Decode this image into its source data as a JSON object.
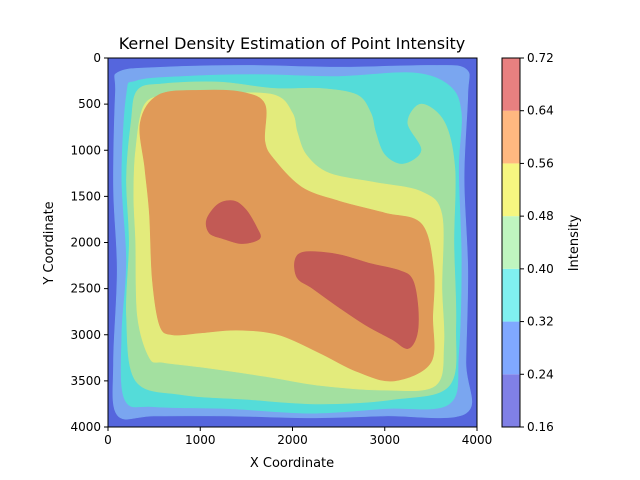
{
  "chart_data": {
    "type": "heatmap",
    "title": "Kernel Density Estimation of Point Intensity",
    "xlabel": "X Coordinate",
    "ylabel": "Y Coordinate",
    "xlim": [
      0,
      4000
    ],
    "ylim": [
      4000,
      0
    ],
    "x_ticks": [
      0,
      1000,
      2000,
      3000,
      4000
    ],
    "y_ticks": [
      0,
      500,
      1000,
      1500,
      2000,
      2500,
      3000,
      3500,
      4000
    ],
    "colorbar": {
      "label": "Intensity",
      "levels": [
        0.16,
        0.24,
        0.32,
        0.4,
        0.48,
        0.56,
        0.64,
        0.72
      ],
      "tick_labels": [
        "0.16",
        "0.24",
        "0.32",
        "0.40",
        "0.48",
        "0.56",
        "0.64",
        "0.72"
      ],
      "colors": [
        "#8080e6",
        "#80a8ff",
        "#80f0f0",
        "#bff5bf",
        "#f6f680",
        "#ffb880",
        "#e88080"
      ]
    },
    "contours": [
      {
        "level": 0.16,
        "color": "#5566dd",
        "points": [
          [
            0,
            0
          ],
          [
            4000,
            0
          ],
          [
            4000,
            4000
          ],
          [
            0,
            4000
          ]
        ]
      },
      {
        "level": 0.24,
        "color": "#7aa6f0",
        "points": [
          [
            80,
            380
          ],
          [
            120,
            150
          ],
          [
            600,
            100
          ],
          [
            1500,
            80
          ],
          [
            2500,
            100
          ],
          [
            3500,
            80
          ],
          [
            3880,
            120
          ],
          [
            3900,
            400
          ],
          [
            3860,
            1300
          ],
          [
            3900,
            2300
          ],
          [
            3880,
            3300
          ],
          [
            3880,
            3850
          ],
          [
            3000,
            3880
          ],
          [
            2200,
            3900
          ],
          [
            1300,
            3880
          ],
          [
            500,
            3880
          ],
          [
            100,
            3870
          ],
          [
            60,
            3300
          ],
          [
            100,
            2300
          ],
          [
            60,
            1400
          ]
        ]
      },
      {
        "level": 0.32,
        "color": "#54dcd9",
        "points": [
          [
            200,
            400
          ],
          [
            300,
            250
          ],
          [
            800,
            200
          ],
          [
            1600,
            180
          ],
          [
            2500,
            200
          ],
          [
            3300,
            160
          ],
          [
            3700,
            300
          ],
          [
            3830,
            600
          ],
          [
            3800,
            1200
          ],
          [
            3830,
            2200
          ],
          [
            3800,
            3200
          ],
          [
            3700,
            3750
          ],
          [
            3000,
            3800
          ],
          [
            2200,
            3850
          ],
          [
            1300,
            3800
          ],
          [
            500,
            3780
          ],
          [
            180,
            3700
          ],
          [
            150,
            3000
          ],
          [
            200,
            2200
          ],
          [
            150,
            1300
          ]
        ]
      },
      {
        "level": 0.4,
        "color": "#a3e0a0",
        "points": [
          [
            250,
            700
          ],
          [
            320,
            350
          ],
          [
            600,
            280
          ],
          [
            1200,
            260
          ],
          [
            1800,
            330
          ],
          [
            2300,
            330
          ],
          [
            2700,
            400
          ],
          [
            2850,
            600
          ],
          [
            2900,
            800
          ],
          [
            3000,
            1050
          ],
          [
            3200,
            1150
          ],
          [
            3400,
            1000
          ],
          [
            3250,
            700
          ],
          [
            3400,
            500
          ],
          [
            3650,
            700
          ],
          [
            3760,
            1200
          ],
          [
            3750,
            2000
          ],
          [
            3770,
            2900
          ],
          [
            3700,
            3550
          ],
          [
            3100,
            3700
          ],
          [
            2300,
            3750
          ],
          [
            1500,
            3700
          ],
          [
            800,
            3650
          ],
          [
            300,
            3500
          ],
          [
            200,
            2800
          ],
          [
            230,
            2000
          ],
          [
            200,
            1300
          ]
        ]
      },
      {
        "level": 0.48,
        "color": "#e3eb7c",
        "points": [
          [
            300,
            1000
          ],
          [
            400,
            500
          ],
          [
            700,
            400
          ],
          [
            1200,
            380
          ],
          [
            1800,
            400
          ],
          [
            2000,
            600
          ],
          [
            2050,
            800
          ],
          [
            2150,
            1050
          ],
          [
            2400,
            1250
          ],
          [
            2900,
            1350
          ],
          [
            3400,
            1450
          ],
          [
            3620,
            1700
          ],
          [
            3620,
            2500
          ],
          [
            3640,
            3100
          ],
          [
            3550,
            3550
          ],
          [
            3000,
            3600
          ],
          [
            2300,
            3550
          ],
          [
            1700,
            3450
          ],
          [
            1000,
            3350
          ],
          [
            600,
            3300
          ],
          [
            450,
            3250
          ],
          [
            320,
            2800
          ],
          [
            300,
            2000
          ],
          [
            280,
            1500
          ]
        ]
      },
      {
        "level": 0.56,
        "color": "#e09a58",
        "points": [
          [
            350,
            700
          ],
          [
            550,
            400
          ],
          [
            1000,
            350
          ],
          [
            1450,
            370
          ],
          [
            1700,
            500
          ],
          [
            1700,
            900
          ],
          [
            1800,
            1100
          ],
          [
            2100,
            1400
          ],
          [
            2500,
            1550
          ],
          [
            3000,
            1680
          ],
          [
            3400,
            1800
          ],
          [
            3530,
            2300
          ],
          [
            3520,
            2800
          ],
          [
            3500,
            3300
          ],
          [
            3100,
            3500
          ],
          [
            2700,
            3400
          ],
          [
            2300,
            3200
          ],
          [
            1850,
            3000
          ],
          [
            1400,
            2950
          ],
          [
            1000,
            2980
          ],
          [
            700,
            3000
          ],
          [
            560,
            2900
          ],
          [
            480,
            2400
          ],
          [
            450,
            1700
          ],
          [
            400,
            1200
          ]
        ]
      },
      {
        "level": 0.64,
        "color": "#c25a55",
        "points": [
          [
            1070,
            1750
          ],
          [
            1200,
            1580
          ],
          [
            1370,
            1550
          ],
          [
            1500,
            1650
          ],
          [
            1620,
            1850
          ],
          [
            1650,
            1950
          ],
          [
            1550,
            2000
          ],
          [
            1420,
            2010
          ],
          [
            1250,
            1960
          ],
          [
            1100,
            1900
          ]
        ]
      },
      {
        "level": 0.64,
        "color": "#c25a55",
        "points": [
          [
            2030,
            2180
          ],
          [
            2150,
            2100
          ],
          [
            2500,
            2130
          ],
          [
            2850,
            2230
          ],
          [
            3150,
            2300
          ],
          [
            3300,
            2400
          ],
          [
            3360,
            2700
          ],
          [
            3350,
            3000
          ],
          [
            3250,
            3150
          ],
          [
            3080,
            3050
          ],
          [
            2800,
            2900
          ],
          [
            2500,
            2700
          ],
          [
            2220,
            2500
          ],
          [
            2050,
            2380
          ]
        ]
      }
    ]
  }
}
